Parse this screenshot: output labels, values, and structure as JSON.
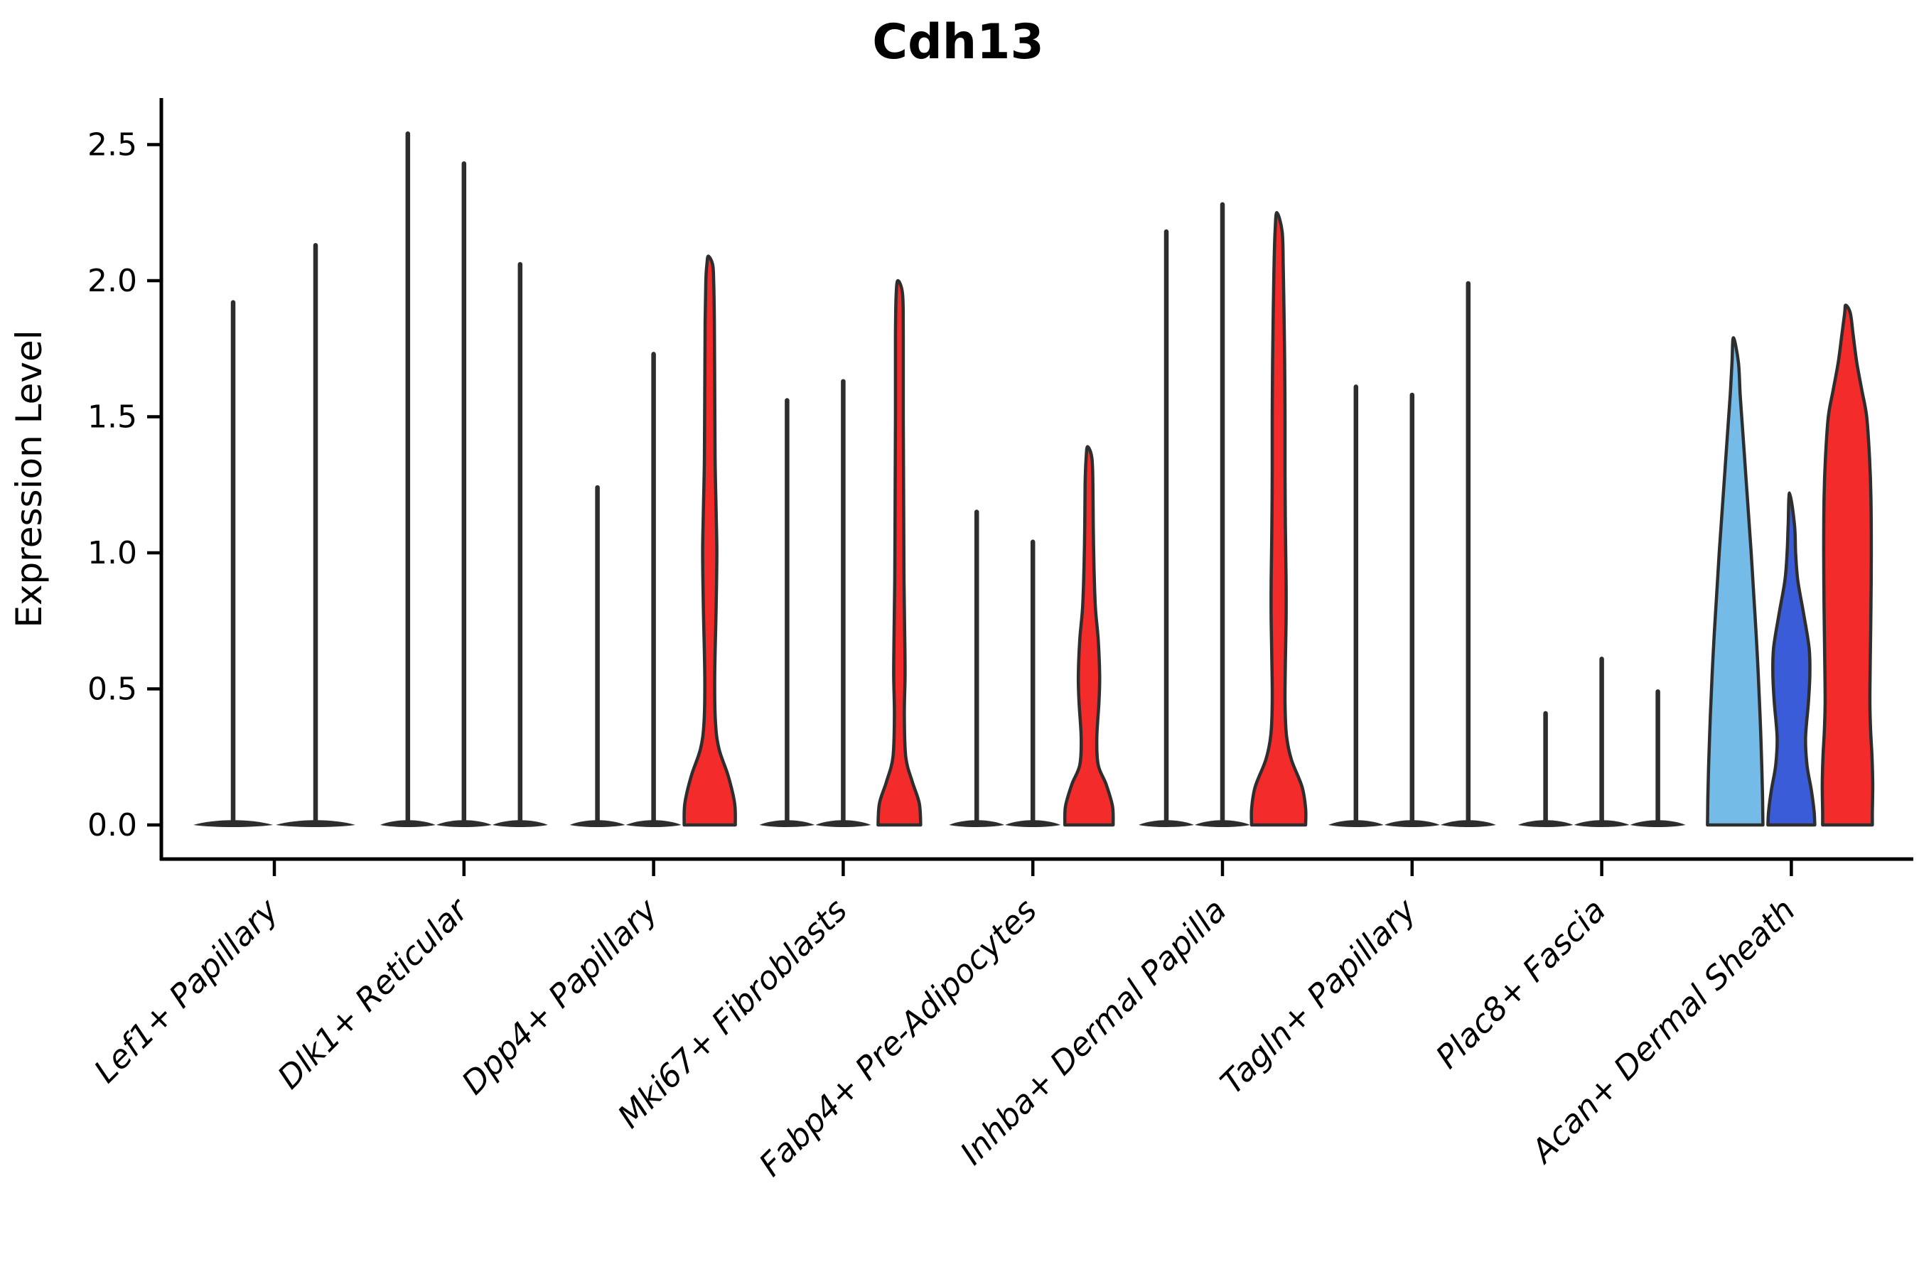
{
  "title": "Cdh13",
  "axes": {
    "ylabel": "Expression Level",
    "ytick_labels": [
      "0.0",
      "0.5",
      "1.0",
      "1.5",
      "2.0",
      "2.5"
    ],
    "yticks": [
      0.0,
      0.5,
      1.0,
      1.5,
      2.0,
      2.5
    ]
  },
  "colors": {
    "red": "#f32b2b",
    "lightblue": "#74bbe7",
    "blue": "#3a5cd8",
    "outline": "#2e2e2e",
    "spike": "#2d2d2d",
    "axis": "#000000"
  },
  "chart_data": {
    "type": "violin",
    "title": "Cdh13",
    "xlabel": "",
    "ylabel": "Expression Level",
    "ylim": [
      0,
      2.67
    ],
    "grid": false,
    "legend": false,
    "categories": [
      "Lef1+ Papillary",
      "Dlk1+ Reticular",
      "Dpp4+ Papillary",
      "Mki67+ Fibroblasts",
      "Fabp4+ Pre-Adipocytes",
      "Inhba+ Dermal Papilla",
      "Tagln+ Papillary",
      "Plac8+ Fascia",
      "Acan+ Dermal Sheath"
    ],
    "groups": [
      {
        "category": "Lef1+ Papillary",
        "violins": [
          {
            "style": "thin",
            "max": 1.92
          },
          {
            "style": "thin",
            "max": 2.13
          }
        ]
      },
      {
        "category": "Dlk1+ Reticular",
        "violins": [
          {
            "style": "thin",
            "max": 2.54
          },
          {
            "style": "thin",
            "max": 2.43
          },
          {
            "style": "thin",
            "max": 2.06
          }
        ]
      },
      {
        "category": "Dpp4+ Papillary",
        "violins": [
          {
            "style": "thin",
            "max": 1.24
          },
          {
            "style": "thin",
            "max": 1.73
          },
          {
            "style": "shaped",
            "max": 2.09,
            "color": "red",
            "profile": [
              [
                0,
                36
              ],
              [
                0.08,
                35
              ],
              [
                0.18,
                26
              ],
              [
                0.28,
                13
              ],
              [
                0.38,
                8
              ],
              [
                0.55,
                7
              ],
              [
                0.8,
                9
              ],
              [
                1.0,
                10
              ],
              [
                1.15,
                9
              ],
              [
                1.35,
                7.5
              ],
              [
                1.6,
                7
              ],
              [
                1.85,
                6.5
              ],
              [
                2.0,
                5.5
              ],
              [
                2.06,
                4
              ],
              [
                2.09,
                2
              ]
            ]
          }
        ]
      },
      {
        "category": "Mki67+ Fibroblasts",
        "violins": [
          {
            "style": "thin",
            "max": 1.56
          },
          {
            "style": "thin",
            "max": 1.63
          },
          {
            "style": "shaped",
            "max": 2.0,
            "color": "red",
            "profile": [
              [
                0,
                30
              ],
              [
                0.08,
                28
              ],
              [
                0.16,
                18
              ],
              [
                0.25,
                9
              ],
              [
                0.4,
                7
              ],
              [
                0.55,
                8
              ],
              [
                0.7,
                7.5
              ],
              [
                0.9,
                6.5
              ],
              [
                1.2,
                6
              ],
              [
                1.5,
                5.5
              ],
              [
                1.8,
                5.5
              ],
              [
                1.95,
                4.5
              ],
              [
                2.0,
                2
              ]
            ]
          }
        ]
      },
      {
        "category": "Fabp4+ Pre-Adipocytes",
        "violins": [
          {
            "style": "thin",
            "max": 1.15
          },
          {
            "style": "thin",
            "max": 1.04
          },
          {
            "style": "shaped",
            "max": 1.39,
            "color": "red",
            "profile": [
              [
                0,
                34
              ],
              [
                0.07,
                33
              ],
              [
                0.15,
                24
              ],
              [
                0.22,
                13
              ],
              [
                0.32,
                11
              ],
              [
                0.45,
                14
              ],
              [
                0.55,
                15
              ],
              [
                0.68,
                13
              ],
              [
                0.8,
                9
              ],
              [
                0.95,
                7
              ],
              [
                1.1,
                6
              ],
              [
                1.25,
                5.5
              ],
              [
                1.35,
                4
              ],
              [
                1.39,
                2
              ]
            ]
          }
        ]
      },
      {
        "category": "Inhba+ Dermal Papilla",
        "violins": [
          {
            "style": "thin",
            "max": 2.18
          },
          {
            "style": "thin",
            "max": 2.28
          },
          {
            "style": "shaped",
            "max": 2.25,
            "color": "red",
            "profile": [
              [
                0,
                38
              ],
              [
                0.06,
                38
              ],
              [
                0.14,
                33
              ],
              [
                0.24,
                18
              ],
              [
                0.33,
                11
              ],
              [
                0.45,
                9
              ],
              [
                0.6,
                9.5
              ],
              [
                0.75,
                10.5
              ],
              [
                0.9,
                10.5
              ],
              [
                1.1,
                9.5
              ],
              [
                1.3,
                9
              ],
              [
                1.5,
                9
              ],
              [
                1.7,
                8.5
              ],
              [
                1.9,
                7.5
              ],
              [
                2.05,
                6.5
              ],
              [
                2.18,
                5
              ],
              [
                2.25,
                2.5
              ]
            ]
          }
        ]
      },
      {
        "category": "Tagln+ Papillary",
        "violins": [
          {
            "style": "thin",
            "max": 1.61
          },
          {
            "style": "thin",
            "max": 1.58
          },
          {
            "style": "thin",
            "max": 1.99
          }
        ]
      },
      {
        "category": "Plac8+ Fascia",
        "violins": [
          {
            "style": "thin",
            "max": 0.41
          },
          {
            "style": "thin",
            "max": 0.61
          },
          {
            "style": "thin",
            "max": 0.49
          }
        ]
      },
      {
        "category": "Acan+ Dermal Sheath",
        "violins": [
          {
            "style": "shaped",
            "max": 1.79,
            "color": "lightblue",
            "profile": [
              [
                0,
                39
              ],
              [
                0.1,
                38.5
              ],
              [
                0.25,
                37
              ],
              [
                0.4,
                35
              ],
              [
                0.55,
                32.5
              ],
              [
                0.7,
                29.5
              ],
              [
                0.85,
                26
              ],
              [
                1.0,
                22.5
              ],
              [
                1.15,
                18.5
              ],
              [
                1.3,
                14.5
              ],
              [
                1.45,
                10.5
              ],
              [
                1.58,
                7
              ],
              [
                1.7,
                4.5
              ],
              [
                1.79,
                2.5
              ]
            ]
          },
          {
            "style": "shaped",
            "max": 1.22,
            "color": "blue",
            "profile": [
              [
                0,
                33
              ],
              [
                0.05,
                32
              ],
              [
                0.13,
                28
              ],
              [
                0.22,
                22
              ],
              [
                0.32,
                20
              ],
              [
                0.45,
                24
              ],
              [
                0.55,
                26
              ],
              [
                0.65,
                25
              ],
              [
                0.78,
                17
              ],
              [
                0.9,
                9
              ],
              [
                1.0,
                6
              ],
              [
                1.1,
                4.5
              ],
              [
                1.22,
                2.5
              ]
            ]
          },
          {
            "style": "shaped",
            "max": 1.91,
            "color": "red",
            "profile": [
              [
                0,
                35
              ],
              [
                0.05,
                35
              ],
              [
                0.15,
                35.5
              ],
              [
                0.25,
                34.5
              ],
              [
                0.35,
                32.5
              ],
              [
                0.45,
                31.5
              ],
              [
                0.6,
                32
              ],
              [
                0.8,
                33
              ],
              [
                1.0,
                33.5
              ],
              [
                1.2,
                33
              ],
              [
                1.35,
                31
              ],
              [
                1.5,
                27
              ],
              [
                1.6,
                20
              ],
              [
                1.7,
                13
              ],
              [
                1.8,
                8
              ],
              [
                1.88,
                4
              ],
              [
                1.91,
                2.5
              ]
            ]
          }
        ]
      }
    ]
  }
}
